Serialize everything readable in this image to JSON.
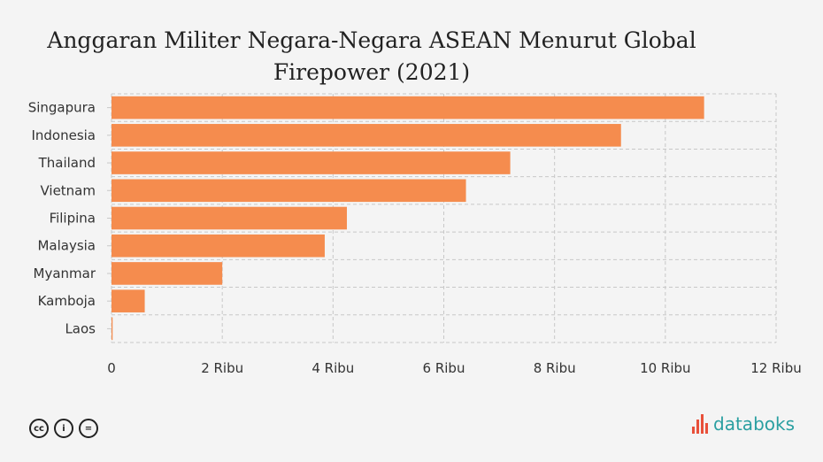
{
  "chart_data": {
    "type": "bar",
    "orientation": "horizontal",
    "title": "Anggaran Militer Negara-Negara ASEAN Menurut Global Firepower (2021)",
    "categories": [
      "Singapura",
      "Indonesia",
      "Thailand",
      "Vietnam",
      "Filipina",
      "Malaysia",
      "Myanmar",
      "Kamboja",
      "Laos"
    ],
    "values": [
      10700,
      9200,
      7200,
      6400,
      4250,
      3850,
      2000,
      600,
      20
    ],
    "xlim": [
      0,
      12000
    ],
    "xticks": [
      0,
      2000,
      4000,
      6000,
      8000,
      10000,
      12000
    ],
    "xtick_labels": [
      "0",
      "2 Ribu",
      "4 Ribu",
      "6 Ribu",
      "8 Ribu",
      "10 Ribu",
      "12 Ribu"
    ],
    "grid": true,
    "bar_color": "#f58c4e"
  },
  "footer": {
    "license_icons": [
      "cc-icon",
      "by-icon",
      "nd-icon"
    ],
    "cc_symbols": [
      "cc",
      "i",
      "="
    ],
    "brand": "databoks",
    "brand_color": "#2a9fa1"
  }
}
